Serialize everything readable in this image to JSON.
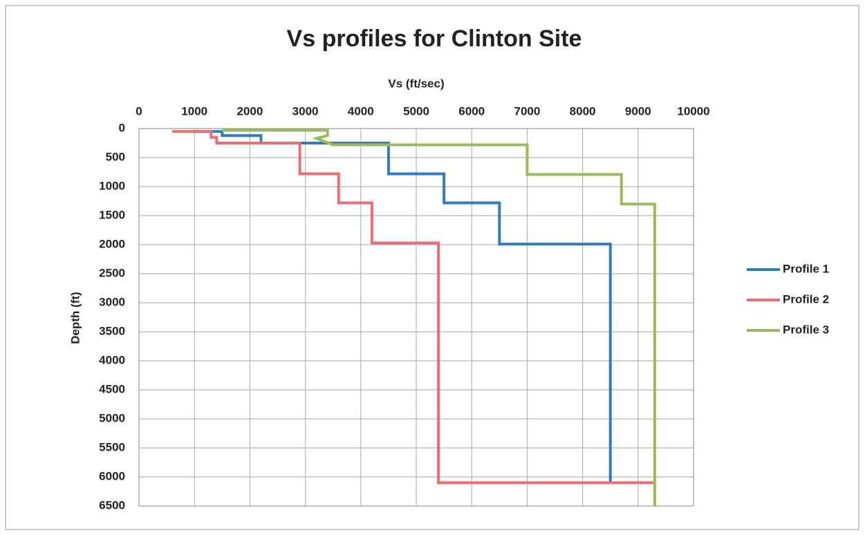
{
  "chart_data": {
    "type": "line",
    "title": "Vs profiles for Clinton Site",
    "x_label": "Vs (ft/sec)",
    "y_label": "Depth (ft)",
    "xlim": [
      0,
      10000
    ],
    "xticks": [
      0,
      1000,
      2000,
      3000,
      4000,
      5000,
      6000,
      7000,
      8000,
      9000,
      10000
    ],
    "ylim": [
      0,
      6500
    ],
    "yticks": [
      0,
      500,
      1000,
      1500,
      2000,
      2500,
      3000,
      3500,
      4000,
      4500,
      5000,
      5500,
      6000,
      6500
    ],
    "y_inverted": true,
    "x_axis_top": true,
    "grid": true,
    "legend": "right",
    "series": [
      {
        "name": "Profile 1",
        "color": "#2e7cc7",
        "x": [
          1000,
          1500,
          1500,
          2200,
          2200,
          4500,
          4500,
          5500,
          5500,
          6500,
          6500,
          8500,
          8500
        ],
        "values": [
          50,
          50,
          120,
          120,
          250,
          250,
          780,
          780,
          1280,
          1280,
          1990,
          1990,
          6080
        ]
      },
      {
        "name": "Profile 2",
        "color": "#ee6b70",
        "x": [
          600,
          1300,
          1300,
          1400,
          1400,
          2900,
          2900,
          3600,
          3600,
          4200,
          4200,
          5400,
          5400,
          9300
        ],
        "values": [
          50,
          50,
          150,
          150,
          250,
          250,
          780,
          780,
          1280,
          1280,
          1970,
          1970,
          6100,
          6100
        ]
      },
      {
        "name": "Profile 3",
        "color": "#9bbb59",
        "x": [
          1500,
          3400,
          3400,
          3200,
          3500,
          7000,
          7000,
          8700,
          8700,
          9300,
          9300
        ],
        "values": [
          30,
          30,
          120,
          170,
          280,
          280,
          790,
          790,
          1300,
          1300,
          6500
        ]
      }
    ]
  }
}
